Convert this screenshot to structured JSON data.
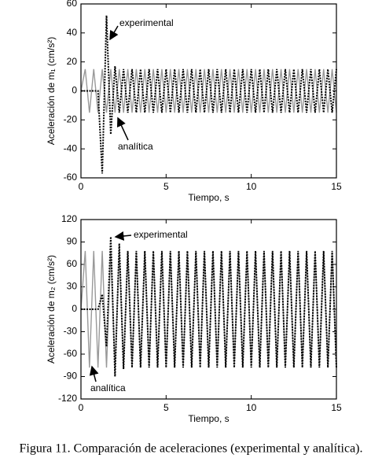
{
  "chart_data": [
    {
      "type": "line",
      "ylabel": "Aceleración de m₁ (cm/s²)",
      "xlabel": "Tiempo, s",
      "xlim": [
        0,
        15
      ],
      "xticks": [
        0,
        5,
        10,
        15
      ],
      "ylim": [
        -60,
        60
      ],
      "yticks": [
        -60,
        -40,
        -20,
        0,
        20,
        40,
        60
      ],
      "annotations": [
        "experimental",
        "analítica"
      ],
      "x": [
        0,
        0.25,
        0.5,
        0.75,
        1,
        1.25,
        1.5,
        1.75,
        2,
        2.25,
        2.5,
        2.75,
        3,
        3.25,
        3.5,
        3.75,
        4,
        4.25,
        4.5,
        4.75,
        5,
        5.25,
        5.5,
        5.75,
        6,
        6.25,
        6.5,
        6.75,
        7,
        7.25,
        7.5,
        7.75,
        8,
        8.25,
        8.5,
        8.75,
        9,
        9.25,
        9.5,
        9.75,
        10,
        10.25,
        10.5,
        10.75,
        11,
        11.25,
        11.5,
        11.75,
        12,
        12.25,
        12.5,
        12.75,
        13,
        13.25,
        13.5,
        13.75,
        14,
        14.25,
        14.5,
        14.75,
        15
      ],
      "series": [
        {
          "name": "analítica",
          "color": "#999999",
          "linestyle": "solid",
          "values": [
            0,
            15,
            -15,
            15,
            -15,
            15,
            -15,
            15,
            -15,
            15,
            -15,
            15,
            -15,
            15,
            -15,
            15,
            -15,
            15,
            -15,
            15,
            -15,
            15,
            -15,
            15,
            -15,
            15,
            -15,
            15,
            -15,
            15,
            -15,
            15,
            -15,
            15,
            -15,
            15,
            -15,
            15,
            -15,
            15,
            -15,
            15,
            -15,
            15,
            -15,
            15,
            -15,
            15,
            -15,
            15,
            -15,
            15,
            -15,
            15,
            -15,
            15,
            -15,
            15,
            -15,
            15,
            -15
          ]
        },
        {
          "name": "experimental",
          "color": "#000000",
          "linestyle": "dotted",
          "values": [
            0,
            0,
            0,
            0,
            0,
            -57,
            52,
            -30,
            17,
            -15,
            15,
            -15,
            15,
            -15,
            15,
            -15,
            15,
            -15,
            15,
            -15,
            15,
            -15,
            15,
            -15,
            15,
            -15,
            15,
            -15,
            15,
            -15,
            15,
            -15,
            15,
            -15,
            15,
            -15,
            15,
            -15,
            15,
            -15,
            15,
            -15,
            15,
            -15,
            15,
            -15,
            15,
            -15,
            15,
            -15,
            15,
            -15,
            15,
            -15,
            15,
            -15,
            15,
            -15,
            15,
            -15,
            15
          ]
        }
      ]
    },
    {
      "type": "line",
      "ylabel": "Aceleración de m₂ (cm/s²)",
      "xlabel": "Tiempo, s",
      "xlim": [
        0,
        15
      ],
      "xticks": [
        0,
        5,
        10,
        15
      ],
      "ylim": [
        -120,
        120
      ],
      "yticks": [
        -120,
        -90,
        -60,
        -30,
        0,
        30,
        60,
        90,
        120
      ],
      "annotations": [
        "experimental",
        "analítica"
      ],
      "x": [
        0,
        0.25,
        0.5,
        0.75,
        1,
        1.25,
        1.5,
        1.75,
        2,
        2.25,
        2.5,
        2.75,
        3,
        3.25,
        3.5,
        3.75,
        4,
        4.25,
        4.5,
        4.75,
        5,
        5.25,
        5.5,
        5.75,
        6,
        6.25,
        6.5,
        6.75,
        7,
        7.25,
        7.5,
        7.75,
        8,
        8.25,
        8.5,
        8.75,
        9,
        9.25,
        9.5,
        9.75,
        10,
        10.25,
        10.5,
        10.75,
        11,
        11.25,
        11.5,
        11.75,
        12,
        12.25,
        12.5,
        12.75,
        13,
        13.25,
        13.5,
        13.75,
        14,
        14.25,
        14.5,
        14.75,
        15
      ],
      "series": [
        {
          "name": "analítica",
          "color": "#999999",
          "linestyle": "solid",
          "values": [
            0,
            78,
            -78,
            78,
            -78,
            78,
            -78,
            78,
            -78,
            78,
            -78,
            78,
            -78,
            78,
            -78,
            78,
            -78,
            78,
            -78,
            78,
            -78,
            78,
            -78,
            78,
            -78,
            78,
            -78,
            78,
            -78,
            78,
            -78,
            78,
            -78,
            78,
            -78,
            78,
            -78,
            78,
            -78,
            78,
            -78,
            78,
            -78,
            78,
            -78,
            78,
            -78,
            78,
            -78,
            78,
            -78,
            78,
            -78,
            78,
            -78,
            78,
            -78,
            78,
            -78,
            78,
            -78
          ]
        },
        {
          "name": "experimental",
          "color": "#000000",
          "linestyle": "dotted",
          "values": [
            0,
            0,
            0,
            0,
            0,
            20,
            -50,
            97,
            -90,
            88,
            -80,
            78,
            -78,
            78,
            -78,
            78,
            -78,
            78,
            -78,
            78,
            -78,
            78,
            -78,
            78,
            -78,
            78,
            -78,
            78,
            -78,
            78,
            -78,
            78,
            -78,
            78,
            -78,
            78,
            -78,
            78,
            -78,
            78,
            -78,
            78,
            -78,
            78,
            -78,
            78,
            -78,
            78,
            -78,
            78,
            -78,
            78,
            -78,
            78,
            -78,
            78,
            -78,
            78,
            -78,
            78,
            -78
          ]
        }
      ]
    }
  ],
  "caption": "Figura 11. Comparación de aceleraciones (experimental y analítica)."
}
